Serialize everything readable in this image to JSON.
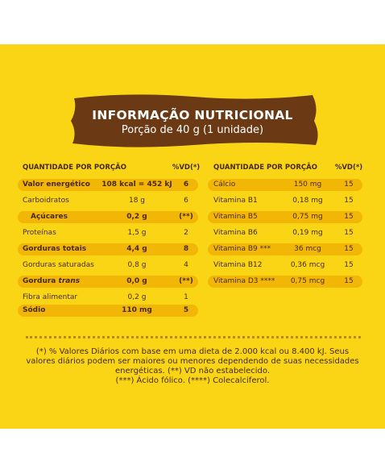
{
  "header": {
    "title": "INFORMAÇÃO NUTRICIONAL",
    "subtitle": "Porção de 40 g (1 unidade)"
  },
  "left": {
    "headers": [
      "QUANTIDADE POR PORÇÃO",
      "%VD(*)"
    ],
    "rows": [
      {
        "label": "Valor energético",
        "amount": "108 kcal = 452 kJ",
        "vd": "6",
        "highlight": true,
        "bold": true
      },
      {
        "label": "Carboidratos",
        "amount": "18 g",
        "vd": "6",
        "highlight": false,
        "bold": false
      },
      {
        "label": "Açúcares",
        "amount": "0,2 g",
        "vd": "(**)",
        "highlight": true,
        "bold": true,
        "indent": true
      },
      {
        "label": "Proteínas",
        "amount": "1,5 g",
        "vd": "2",
        "highlight": false,
        "bold": false
      },
      {
        "label": "Gorduras totais",
        "amount": "4,4 g",
        "vd": "8",
        "highlight": true,
        "bold": true
      },
      {
        "label": "Gorduras saturadas",
        "amount": "0,8 g",
        "vd": "4",
        "highlight": false,
        "bold": false
      },
      {
        "label": "Gordura",
        "label_italic": "trans",
        "amount": "0,0 g",
        "vd": "(**)",
        "highlight": true,
        "bold": true
      },
      {
        "label": "Fibra alimentar",
        "amount": "0,2 g",
        "vd": "1",
        "highlight": false,
        "bold": false
      },
      {
        "label": "Sódio",
        "amount": "110 mg",
        "vd": "5",
        "highlight": true,
        "bold": true
      }
    ]
  },
  "right": {
    "headers": [
      "QUANTIDADE POR PORÇÃO",
      "%VD(*)"
    ],
    "rows": [
      {
        "label": "Cálcio",
        "amount": "150 mg",
        "vd": "15",
        "highlight": true,
        "bold": false
      },
      {
        "label": "Vitamina B1",
        "amount": "0,18 mg",
        "vd": "15",
        "highlight": false,
        "bold": false
      },
      {
        "label": "Vitamina B5",
        "amount": "0,75 mg",
        "vd": "15",
        "highlight": true,
        "bold": false
      },
      {
        "label": "Vitamina B6",
        "amount": "0,19 mg",
        "vd": "15",
        "highlight": false,
        "bold": false
      },
      {
        "label": "Vitamina B9 ***",
        "amount": "36 mcg",
        "vd": "15",
        "highlight": true,
        "bold": false
      },
      {
        "label": "Vitamina B12",
        "amount": "0,36 mcg",
        "vd": "15",
        "highlight": false,
        "bold": false
      },
      {
        "label": "Vitamina D3 ****",
        "amount": "0,75 mcg",
        "vd": "15",
        "highlight": true,
        "bold": false
      }
    ]
  },
  "footnote": [
    "(*) % Valores Diários com base em uma dieta de 2.000 kcal ou 8.400 kJ. Seus",
    "valores diários podem ser maiores ou menores dependendo de suas necessidades",
    "energéticas. (**) VD não estabelecido.",
    "(***) Ácido fólico. (****) Colecalciferol."
  ]
}
